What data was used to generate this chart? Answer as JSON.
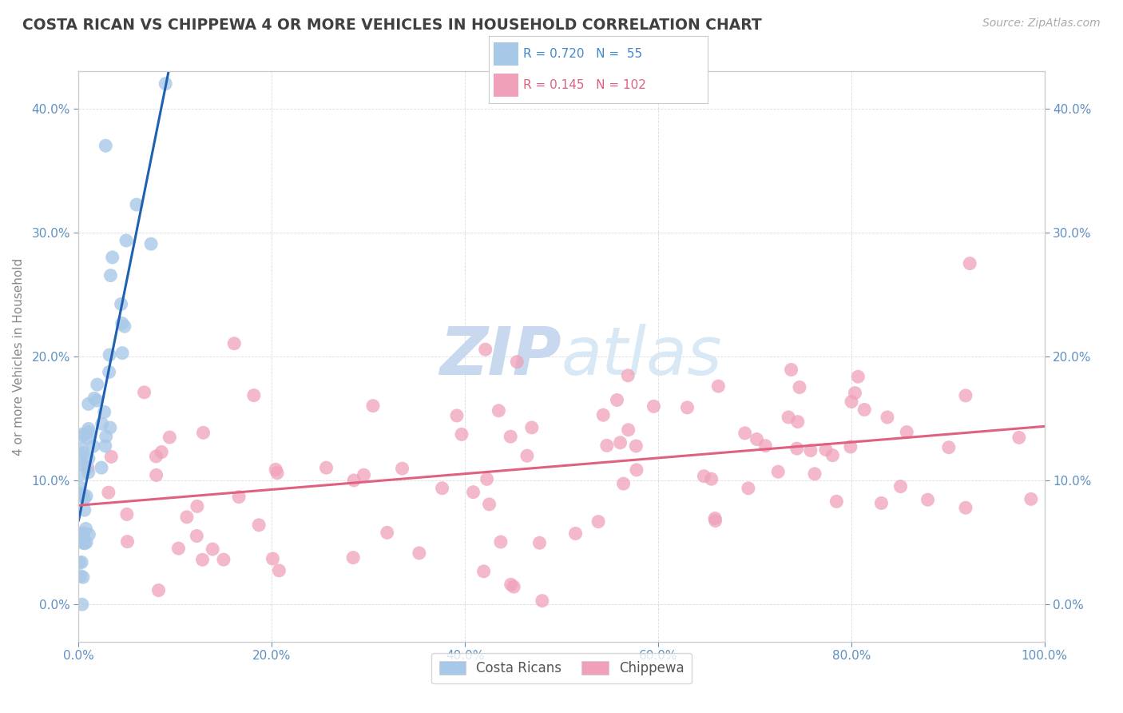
{
  "title": "COSTA RICAN VS CHIPPEWA 4 OR MORE VEHICLES IN HOUSEHOLD CORRELATION CHART",
  "source": "Source: ZipAtlas.com",
  "ylabel": "4 or more Vehicles in Household",
  "xlim": [
    0.0,
    100.0
  ],
  "ylim": [
    -3.0,
    43.0
  ],
  "xticks": [
    0.0,
    20.0,
    40.0,
    60.0,
    80.0,
    100.0
  ],
  "yticks": [
    0.0,
    10.0,
    20.0,
    30.0,
    40.0
  ],
  "background_color": "#ffffff",
  "grid_color": "#cccccc",
  "watermark_zip": "ZIP",
  "watermark_atlas": "atlas",
  "watermark_color": "#c8d8ee",
  "blue_color": "#a8c8e8",
  "pink_color": "#f0a0b8",
  "blue_line_color": "#2060b0",
  "pink_line_color": "#e06080",
  "title_color": "#404040",
  "axis_label_color": "#6090c0",
  "tick_color": "#6090c0",
  "legend_text_color": "#4488cc",
  "ylabel_color": "#888888"
}
